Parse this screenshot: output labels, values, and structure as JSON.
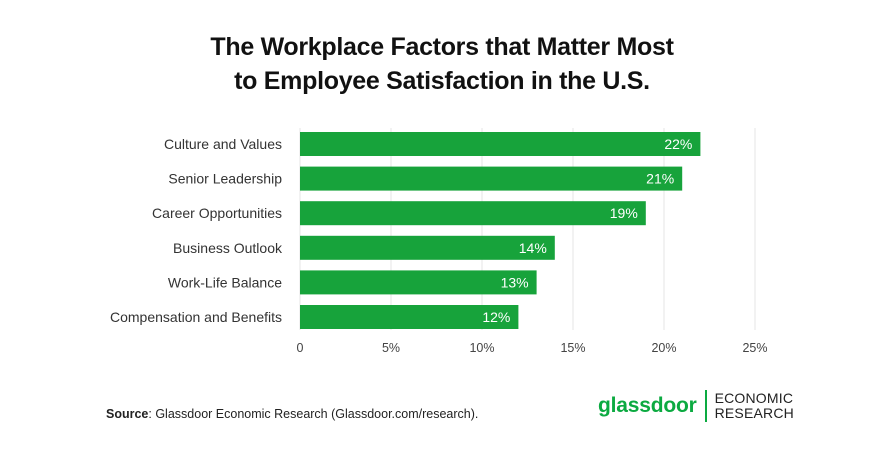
{
  "chart_data": {
    "type": "bar",
    "orientation": "horizontal",
    "title_lines": [
      "The Workplace Factors that Matter Most",
      "to Employee Satisfaction in the U.S."
    ],
    "categories": [
      "Culture and Values",
      "Senior Leadership",
      "Career Opportunities",
      "Business Outlook",
      "Work-Life Balance",
      "Compensation and Benefits"
    ],
    "values": [
      22,
      21,
      19,
      14,
      13,
      12
    ],
    "data_labels": [
      "22%",
      "21%",
      "19%",
      "14%",
      "13%",
      "12%"
    ],
    "xlim": [
      0,
      25
    ],
    "xticks": [
      0,
      5,
      10,
      15,
      20,
      25
    ],
    "xtick_labels": [
      "0",
      "5%",
      "10%",
      "15%",
      "20%",
      "25%"
    ],
    "grid": "vertical",
    "legend": "none",
    "bar_color": "#17a33b",
    "grid_color": "#e6e6e6"
  },
  "source": {
    "label": "Source",
    "text": ": Glassdoor Economic Research (Glassdoor.com/research)."
  },
  "logo": {
    "wordmark": "glassdoor",
    "sub_line1": "ECONOMIC",
    "sub_line2": "RESEARCH",
    "color": "#0caa41"
  }
}
